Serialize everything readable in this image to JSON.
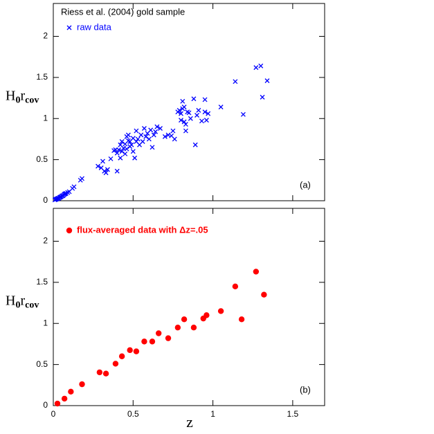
{
  "chart_data": [
    {
      "type": "scatter",
      "legend_title": "Riess et al. (2004) gold sample",
      "annotation": "(a)",
      "ylabel": [
        "H",
        "0",
        "r",
        "cov"
      ],
      "show_xtick_labels": false,
      "xlim": [
        0,
        1.7
      ],
      "ylim": [
        0,
        2.4
      ],
      "xticks": [
        0,
        0.5,
        1,
        1.5
      ],
      "yticks": [
        0,
        0.5,
        1,
        1.5,
        2
      ],
      "x": [
        0.01,
        0.015,
        0.02,
        0.025,
        0.03,
        0.035,
        0.04,
        0.045,
        0.05,
        0.055,
        0.06,
        0.065,
        0.07,
        0.075,
        0.08,
        0.09,
        0.1,
        0.12,
        0.13,
        0.17,
        0.18,
        0.28,
        0.3,
        0.31,
        0.32,
        0.33,
        0.34,
        0.36,
        0.38,
        0.39,
        0.4,
        0.4,
        0.41,
        0.42,
        0.42,
        0.43,
        0.43,
        0.44,
        0.45,
        0.45,
        0.46,
        0.46,
        0.47,
        0.47,
        0.48,
        0.48,
        0.49,
        0.5,
        0.5,
        0.51,
        0.52,
        0.52,
        0.53,
        0.54,
        0.55,
        0.56,
        0.57,
        0.58,
        0.59,
        0.6,
        0.61,
        0.62,
        0.63,
        0.64,
        0.65,
        0.67,
        0.7,
        0.72,
        0.74,
        0.75,
        0.76,
        0.78,
        0.79,
        0.8,
        0.8,
        0.81,
        0.81,
        0.82,
        0.82,
        0.83,
        0.83,
        0.84,
        0.85,
        0.86,
        0.88,
        0.89,
        0.9,
        0.91,
        0.93,
        0.95,
        0.95,
        0.96,
        0.97,
        1.05,
        1.14,
        1.19,
        1.27,
        1.3,
        1.31,
        1.34
      ],
      "series": [
        {
          "name": "raw data",
          "color": "#0000ff",
          "marker": "x",
          "values": [
            0.01,
            0.015,
            0.02,
            0.025,
            0.03,
            0.03,
            0.04,
            0.045,
            0.05,
            0.06,
            0.06,
            0.07,
            0.08,
            0.085,
            0.09,
            0.1,
            0.11,
            0.15,
            0.17,
            0.25,
            0.27,
            0.42,
            0.4,
            0.48,
            0.36,
            0.34,
            0.38,
            0.51,
            0.61,
            0.62,
            0.36,
            0.58,
            0.62,
            0.68,
            0.52,
            0.6,
            0.72,
            0.64,
            0.57,
            0.69,
            0.78,
            0.63,
            0.8,
            0.73,
            0.72,
            0.66,
            0.68,
            0.6,
            0.76,
            0.52,
            0.72,
            0.85,
            0.75,
            0.68,
            0.8,
            0.72,
            0.88,
            0.78,
            0.82,
            0.75,
            0.86,
            0.65,
            0.8,
            0.84,
            0.9,
            0.88,
            0.78,
            0.8,
            0.79,
            0.85,
            0.75,
            1.08,
            1.1,
            1.06,
            0.98,
            1.12,
            1.21,
            1.14,
            0.96,
            0.93,
            0.85,
            1.08,
            1.07,
            1.0,
            1.24,
            0.68,
            1.04,
            1.1,
            0.97,
            1.08,
            1.23,
            0.98,
            1.06,
            1.14,
            1.45,
            1.05,
            1.62,
            1.64,
            1.26,
            1.46
          ]
        }
      ]
    },
    {
      "type": "scatter",
      "annotation": "(b)",
      "xlabel": "z",
      "ylabel": [
        "H",
        "0",
        "r",
        "cov"
      ],
      "show_xtick_labels": true,
      "xlim": [
        0,
        1.7
      ],
      "ylim": [
        0,
        2.4
      ],
      "xticks": [
        0,
        0.5,
        1,
        1.5
      ],
      "yticks": [
        0,
        0.5,
        1,
        1.5,
        2
      ],
      "x": [
        0.026,
        0.07,
        0.11,
        0.18,
        0.29,
        0.33,
        0.39,
        0.43,
        0.48,
        0.52,
        0.57,
        0.62,
        0.66,
        0.72,
        0.78,
        0.82,
        0.88,
        0.94,
        0.96,
        1.05,
        1.14,
        1.18,
        1.27,
        1.32
      ],
      "series": [
        {
          "name": "flux-averaged data with Δz=.05",
          "color": "#ff0000",
          "marker": "circle",
          "values": [
            0.025,
            0.085,
            0.17,
            0.26,
            0.405,
            0.39,
            0.51,
            0.6,
            0.675,
            0.66,
            0.78,
            0.78,
            0.88,
            0.82,
            0.95,
            1.05,
            0.95,
            1.06,
            1.1,
            1.15,
            1.45,
            1.05,
            1.63,
            1.35
          ]
        }
      ]
    }
  ]
}
